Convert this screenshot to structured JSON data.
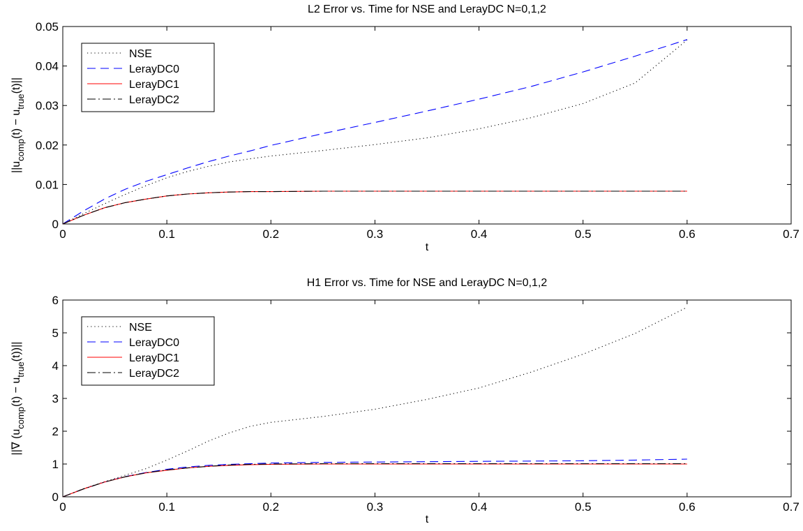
{
  "chart_data": [
    {
      "type": "line",
      "title": "L2 Error vs. Time for NSE and LerayDC N=0,1,2",
      "xlabel": "t",
      "ylabel": {
        "main": "||u",
        "sub1": "comp",
        "mid": "(t) − u",
        "sub2": "true",
        "end": "(t)||"
      },
      "xlim": [
        0,
        0.7
      ],
      "ylim": [
        0,
        0.05
      ],
      "xticks": [
        0,
        0.1,
        0.2,
        0.3,
        0.4,
        0.5,
        0.6,
        0.7
      ],
      "xtick_labels": [
        "0",
        "0.1",
        "0.2",
        "0.3",
        "0.4",
        "0.5",
        "0.6",
        "0.7"
      ],
      "yticks": [
        0,
        0.01,
        0.02,
        0.03,
        0.04,
        0.05
      ],
      "ytick_labels": [
        "0",
        "0.01",
        "0.02",
        "0.03",
        "0.04",
        "0.05"
      ],
      "grid": false,
      "legend_position": "top-left",
      "series": [
        {
          "name": "NSE",
          "color": "#000000",
          "dash": "dotted",
          "x": [
            0,
            0.02,
            0.04,
            0.06,
            0.08,
            0.1,
            0.12,
            0.14,
            0.16,
            0.18,
            0.2,
            0.25,
            0.3,
            0.35,
            0.4,
            0.45,
            0.5,
            0.55,
            0.6
          ],
          "y": [
            0,
            0.0026,
            0.0051,
            0.0075,
            0.0097,
            0.0117,
            0.0133,
            0.0146,
            0.0157,
            0.0165,
            0.0172,
            0.0186,
            0.0201,
            0.0218,
            0.0241,
            0.0269,
            0.0305,
            0.0357,
            0.0466
          ]
        },
        {
          "name": "LerayDC0",
          "color": "#0000ff",
          "dash": "dashed",
          "x": [
            0,
            0.02,
            0.04,
            0.06,
            0.08,
            0.1,
            0.12,
            0.14,
            0.16,
            0.18,
            0.2,
            0.25,
            0.3,
            0.35,
            0.4,
            0.45,
            0.5,
            0.55,
            0.6
          ],
          "y": [
            0,
            0.0033,
            0.0063,
            0.0088,
            0.0108,
            0.0125,
            0.0142,
            0.0158,
            0.0172,
            0.0185,
            0.0199,
            0.0229,
            0.0257,
            0.0286,
            0.0316,
            0.0348,
            0.0385,
            0.0425,
            0.0467
          ]
        },
        {
          "name": "LerayDC1",
          "color": "#ff0000",
          "dash": "solid",
          "x": [
            0,
            0.02,
            0.04,
            0.06,
            0.08,
            0.1,
            0.12,
            0.14,
            0.16,
            0.18,
            0.2,
            0.25,
            0.3,
            0.35,
            0.4,
            0.45,
            0.5,
            0.55,
            0.6
          ],
          "y": [
            0,
            0.0022,
            0.0041,
            0.0054,
            0.0063,
            0.0071,
            0.0076,
            0.0079,
            0.0081,
            0.0082,
            0.0082,
            0.0083,
            0.0083,
            0.0083,
            0.0083,
            0.0083,
            0.0083,
            0.0083,
            0.0083
          ]
        },
        {
          "name": "LerayDC2",
          "color": "#000000",
          "dash": "dashdot",
          "x": [
            0,
            0.02,
            0.04,
            0.06,
            0.08,
            0.1,
            0.12,
            0.14,
            0.16,
            0.18,
            0.2,
            0.25,
            0.3,
            0.35,
            0.4,
            0.45,
            0.5,
            0.55,
            0.6
          ],
          "y": [
            0,
            0.0022,
            0.0041,
            0.0054,
            0.0063,
            0.0071,
            0.0076,
            0.0079,
            0.0081,
            0.0082,
            0.0082,
            0.0083,
            0.0083,
            0.0083,
            0.0083,
            0.0083,
            0.0083,
            0.0083,
            0.0083
          ]
        }
      ]
    },
    {
      "type": "line",
      "title": "H1 Error vs. Time for NSE and LerayDC N=0,1,2",
      "xlabel": "t",
      "ylabel": {
        "main": "||∇ (u",
        "sub1": "comp",
        "mid": "(t) − u",
        "sub2": "true",
        "end": "(t))||"
      },
      "xlim": [
        0,
        0.7
      ],
      "ylim": [
        0,
        6
      ],
      "xticks": [
        0,
        0.1,
        0.2,
        0.3,
        0.4,
        0.5,
        0.6,
        0.7
      ],
      "xtick_labels": [
        "0",
        "0.1",
        "0.2",
        "0.3",
        "0.4",
        "0.5",
        "0.6",
        "0.7"
      ],
      "yticks": [
        0,
        1,
        2,
        3,
        4,
        5,
        6
      ],
      "ytick_labels": [
        "0",
        "1",
        "2",
        "3",
        "4",
        "5",
        "6"
      ],
      "grid": false,
      "legend_position": "top-left",
      "series": [
        {
          "name": "NSE",
          "color": "#000000",
          "dash": "dotted",
          "x": [
            0,
            0.02,
            0.04,
            0.06,
            0.08,
            0.1,
            0.12,
            0.14,
            0.16,
            0.18,
            0.2,
            0.25,
            0.3,
            0.35,
            0.4,
            0.45,
            0.5,
            0.55,
            0.6
          ],
          "y": [
            0,
            0.25,
            0.46,
            0.66,
            0.86,
            1.12,
            1.4,
            1.7,
            1.95,
            2.15,
            2.27,
            2.45,
            2.67,
            2.97,
            3.32,
            3.8,
            4.35,
            4.98,
            5.78
          ]
        },
        {
          "name": "LerayDC0",
          "color": "#0000ff",
          "dash": "dashed",
          "x": [
            0,
            0.02,
            0.04,
            0.06,
            0.08,
            0.1,
            0.12,
            0.14,
            0.16,
            0.18,
            0.2,
            0.25,
            0.3,
            0.35,
            0.4,
            0.45,
            0.5,
            0.55,
            0.6
          ],
          "y": [
            0,
            0.24,
            0.45,
            0.62,
            0.74,
            0.84,
            0.91,
            0.96,
            0.99,
            1.01,
            1.03,
            1.05,
            1.06,
            1.07,
            1.08,
            1.09,
            1.1,
            1.12,
            1.15
          ]
        },
        {
          "name": "LerayDC1",
          "color": "#ff0000",
          "dash": "solid",
          "x": [
            0,
            0.02,
            0.04,
            0.06,
            0.08,
            0.1,
            0.12,
            0.14,
            0.16,
            0.18,
            0.2,
            0.25,
            0.3,
            0.35,
            0.4,
            0.45,
            0.5,
            0.55,
            0.6
          ],
          "y": [
            0,
            0.24,
            0.45,
            0.61,
            0.73,
            0.81,
            0.88,
            0.93,
            0.96,
            0.98,
            0.99,
            1.0,
            1.0,
            1.0,
            1.0,
            1.0,
            1.0,
            1.0,
            1.0
          ]
        },
        {
          "name": "LerayDC2",
          "color": "#000000",
          "dash": "dashdot",
          "x": [
            0,
            0.02,
            0.04,
            0.06,
            0.08,
            0.1,
            0.12,
            0.14,
            0.16,
            0.18,
            0.2,
            0.25,
            0.3,
            0.35,
            0.4,
            0.45,
            0.5,
            0.55,
            0.6
          ],
          "y": [
            0,
            0.24,
            0.45,
            0.61,
            0.73,
            0.82,
            0.88,
            0.93,
            0.97,
            0.99,
            1.0,
            1.01,
            1.01,
            1.01,
            1.01,
            1.01,
            1.01,
            1.01,
            1.01
          ]
        }
      ]
    }
  ]
}
